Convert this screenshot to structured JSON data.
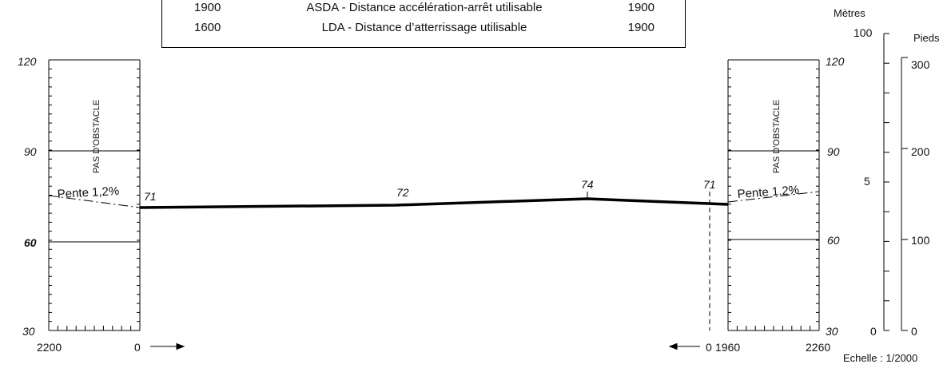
{
  "distance_table": {
    "rows": [
      {
        "left_value": "1900",
        "label": "ASDA - Distance accélération-arrêt utilisable",
        "right_value": "1900"
      },
      {
        "left_value": "1600",
        "label": "LDA - Distance d’atterrissage utilisable",
        "right_value": "1900"
      }
    ]
  },
  "profile": {
    "left_height_labels": [
      "120",
      "90",
      "60",
      "30"
    ],
    "right_height_labels": [
      "120",
      "90",
      "60",
      "30"
    ],
    "obstacle_text_left": "PAS D'OBSTACLE",
    "obstacle_text_right": "PAS D'OBSTACLE",
    "slope_left": "Pente 1,2%",
    "slope_right": "Pente 1.2%",
    "elevation_points": [
      {
        "label": "71"
      },
      {
        "label": "72"
      },
      {
        "label": "74"
      },
      {
        "label": "71"
      }
    ],
    "bottom_labels": {
      "left_distance": "2200",
      "left_zero": "0",
      "right_zero": "0",
      "right_threshold": "1960",
      "right_distance": "2260"
    }
  },
  "scale": {
    "metres_title": "Mètres",
    "metres_labels": [
      "100",
      "5",
      "0"
    ],
    "feet_title": "Pieds",
    "feet_labels": [
      "300",
      "200",
      "100",
      "0"
    ],
    "scale_text": "Echelle :  1/2000"
  },
  "colors": {
    "line": "#000000",
    "text": "#111111",
    "background": "#ffffff"
  }
}
